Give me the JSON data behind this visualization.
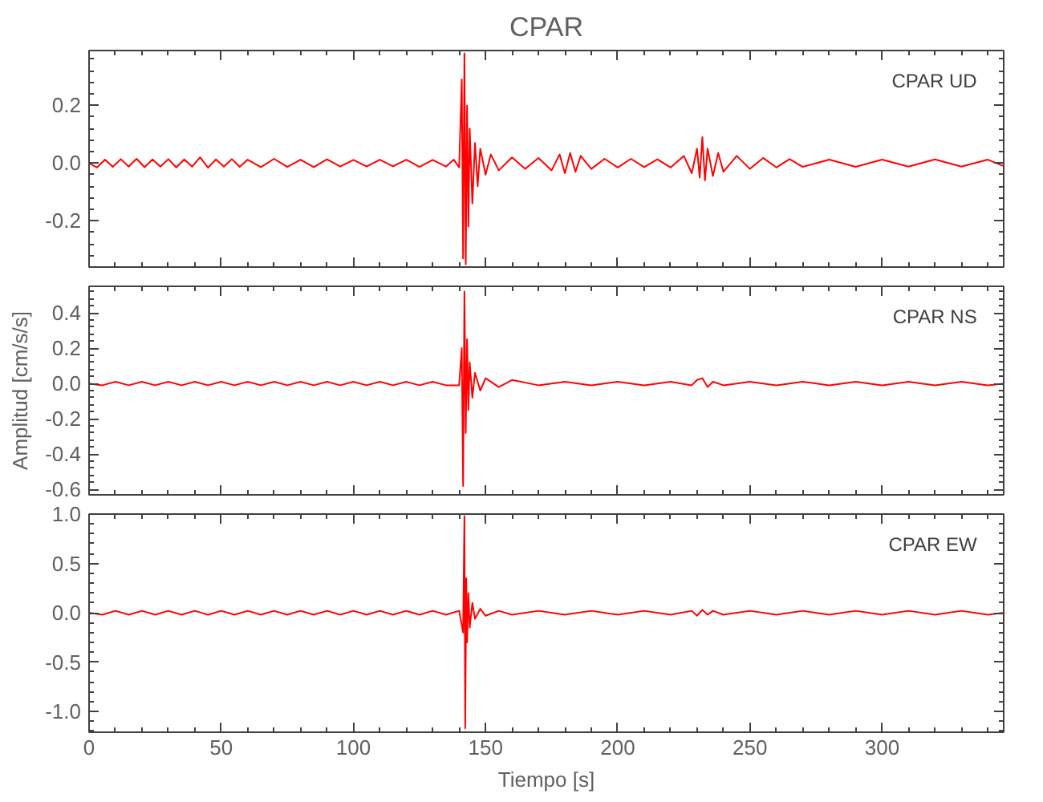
{
  "chart_data": [
    {
      "type": "line",
      "title": "CPAR",
      "annotations": [
        "CPAR   UD"
      ],
      "xlim": [
        0,
        346
      ],
      "ylim": [
        -0.36,
        0.39
      ],
      "xticks": [
        0,
        50,
        100,
        150,
        200,
        250,
        300
      ],
      "yticks": [
        {
          "value": -0.2,
          "label": "-0.2"
        },
        {
          "value": 0.0,
          "label": "0.0"
        },
        {
          "value": 0.2,
          "label": "0.2"
        }
      ],
      "tick_labels": "y",
      "grid": false,
      "series": [
        {
          "color": "#ff0000",
          "x": [
            0,
            3,
            6,
            9,
            12,
            15,
            18,
            21,
            24,
            27,
            30,
            33,
            36,
            39,
            42,
            45,
            48,
            51,
            54,
            57,
            60,
            65,
            70,
            75,
            80,
            85,
            90,
            95,
            100,
            105,
            110,
            115,
            120,
            125,
            130,
            135,
            138,
            140,
            141,
            141.5,
            142,
            142.5,
            143,
            143.5,
            144,
            145,
            146,
            147,
            148,
            150,
            152,
            155,
            160,
            165,
            170,
            175,
            178,
            180,
            182,
            184,
            186,
            190,
            195,
            200,
            205,
            210,
            215,
            220,
            225,
            228,
            230,
            231,
            232,
            233,
            234,
            236,
            238,
            240,
            245,
            250,
            255,
            260,
            265,
            270,
            280,
            290,
            300,
            310,
            320,
            330,
            340,
            346
          ],
          "values": [
            0.0,
            -0.015,
            0.012,
            -0.013,
            0.014,
            -0.012,
            0.015,
            -0.014,
            0.013,
            -0.012,
            0.014,
            -0.015,
            0.013,
            -0.012,
            0.02,
            -0.016,
            0.013,
            -0.012,
            0.014,
            -0.013,
            0.012,
            -0.014,
            0.015,
            -0.013,
            0.012,
            -0.014,
            0.013,
            -0.012,
            0.011,
            -0.012,
            0.012,
            -0.011,
            0.012,
            -0.013,
            0.011,
            -0.012,
            0.012,
            -0.015,
            0.29,
            -0.33,
            0.38,
            -0.35,
            0.2,
            -0.22,
            0.12,
            -0.14,
            0.07,
            -0.08,
            0.05,
            -0.04,
            0.03,
            -0.025,
            0.02,
            -0.02,
            0.018,
            -0.025,
            0.03,
            -0.035,
            0.035,
            -0.03,
            0.025,
            -0.02,
            0.015,
            -0.015,
            0.015,
            -0.014,
            0.013,
            -0.015,
            0.025,
            -0.035,
            0.05,
            -0.05,
            0.09,
            -0.06,
            0.05,
            -0.045,
            0.035,
            -0.03,
            0.025,
            -0.02,
            0.018,
            -0.015,
            0.014,
            -0.013,
            0.012,
            -0.013,
            0.012,
            -0.012,
            0.013,
            -0.012,
            0.012,
            -0.01
          ]
        }
      ]
    },
    {
      "type": "line",
      "ylabel": "Amplitud [cm/s/s]",
      "annotations": [
        "CPAR   NS"
      ],
      "xlim": [
        0,
        346
      ],
      "ylim": [
        -0.63,
        0.55
      ],
      "xticks": [
        0,
        50,
        100,
        150,
        200,
        250,
        300
      ],
      "yticks": [
        {
          "value": -0.6,
          "label": "-0.6"
        },
        {
          "value": -0.4,
          "label": "-0.4"
        },
        {
          "value": -0.2,
          "label": "-0.2"
        },
        {
          "value": 0.0,
          "label": "0.0"
        },
        {
          "value": 0.2,
          "label": "0.2"
        },
        {
          "value": 0.4,
          "label": "0.4"
        }
      ],
      "tick_labels": "y",
      "grid": false,
      "series": [
        {
          "color": "#ff0000",
          "x": [
            0,
            5,
            10,
            15,
            20,
            25,
            30,
            35,
            40,
            45,
            50,
            55,
            60,
            65,
            70,
            75,
            80,
            85,
            90,
            95,
            100,
            105,
            110,
            115,
            120,
            125,
            130,
            135,
            140,
            141,
            141.5,
            142,
            142.5,
            143,
            143.5,
            144,
            145,
            146,
            148,
            150,
            155,
            160,
            170,
            180,
            190,
            200,
            210,
            220,
            228,
            230,
            232,
            234,
            236,
            240,
            250,
            260,
            270,
            280,
            290,
            300,
            310,
            320,
            330,
            340,
            346
          ],
          "values": [
            0.0,
            -0.01,
            0.01,
            -0.01,
            0.01,
            -0.01,
            0.01,
            -0.01,
            0.01,
            -0.01,
            0.01,
            -0.01,
            0.01,
            -0.01,
            0.01,
            -0.01,
            0.01,
            -0.01,
            0.01,
            -0.01,
            0.01,
            -0.01,
            0.01,
            -0.01,
            0.01,
            -0.01,
            0.01,
            -0.01,
            -0.01,
            0.2,
            -0.58,
            0.52,
            -0.28,
            0.25,
            -0.15,
            0.12,
            -0.08,
            0.06,
            -0.04,
            0.03,
            -0.02,
            0.02,
            -0.01,
            0.01,
            -0.01,
            0.01,
            -0.01,
            0.01,
            -0.01,
            0.02,
            0.03,
            -0.02,
            0.01,
            -0.01,
            0.01,
            -0.01,
            0.01,
            -0.01,
            0.01,
            -0.01,
            0.01,
            -0.01,
            0.01,
            -0.01,
            0.0
          ]
        }
      ]
    },
    {
      "type": "line",
      "xlabel": "Tiempo [s]",
      "annotations": [
        "CPAR   EW"
      ],
      "xlim": [
        0,
        346
      ],
      "ylim": [
        -1.21,
        1.0
      ],
      "xticks": [
        0,
        50,
        100,
        150,
        200,
        250,
        300
      ],
      "yticks": [
        {
          "value": -1.0,
          "label": "-1.0"
        },
        {
          "value": -0.5,
          "label": "-0.5"
        },
        {
          "value": 0.0,
          "label": "0.0"
        },
        {
          "value": 0.5,
          "label": "0.5"
        },
        {
          "value": 1.0,
          "label": "1.0"
        }
      ],
      "grid": false,
      "series": [
        {
          "color": "#ff0000",
          "x": [
            0,
            5,
            10,
            15,
            20,
            25,
            30,
            35,
            40,
            45,
            50,
            55,
            60,
            65,
            70,
            75,
            80,
            85,
            90,
            95,
            100,
            105,
            110,
            115,
            120,
            125,
            130,
            135,
            140,
            141.5,
            142,
            142.3,
            142.7,
            143,
            143.5,
            144,
            145,
            146,
            148,
            150,
            155,
            160,
            170,
            180,
            190,
            200,
            210,
            220,
            228,
            230,
            232,
            234,
            236,
            240,
            250,
            260,
            270,
            280,
            290,
            300,
            310,
            320,
            330,
            340,
            346
          ],
          "values": [
            0.0,
            -0.02,
            0.02,
            -0.02,
            0.02,
            -0.02,
            0.02,
            -0.02,
            0.02,
            -0.02,
            0.02,
            -0.02,
            0.02,
            -0.02,
            0.02,
            -0.02,
            0.02,
            -0.02,
            0.02,
            -0.02,
            0.02,
            -0.02,
            0.02,
            -0.02,
            0.02,
            -0.02,
            0.02,
            -0.02,
            0.02,
            -0.2,
            0.98,
            -1.17,
            0.35,
            -0.3,
            0.2,
            -0.15,
            0.1,
            -0.06,
            0.04,
            -0.03,
            0.02,
            -0.02,
            0.02,
            -0.02,
            0.02,
            -0.02,
            0.02,
            -0.02,
            0.02,
            -0.03,
            0.03,
            -0.02,
            0.02,
            -0.02,
            0.02,
            -0.02,
            0.02,
            -0.02,
            0.02,
            -0.02,
            0.02,
            -0.02,
            0.02,
            -0.02,
            0.0
          ]
        }
      ]
    }
  ]
}
